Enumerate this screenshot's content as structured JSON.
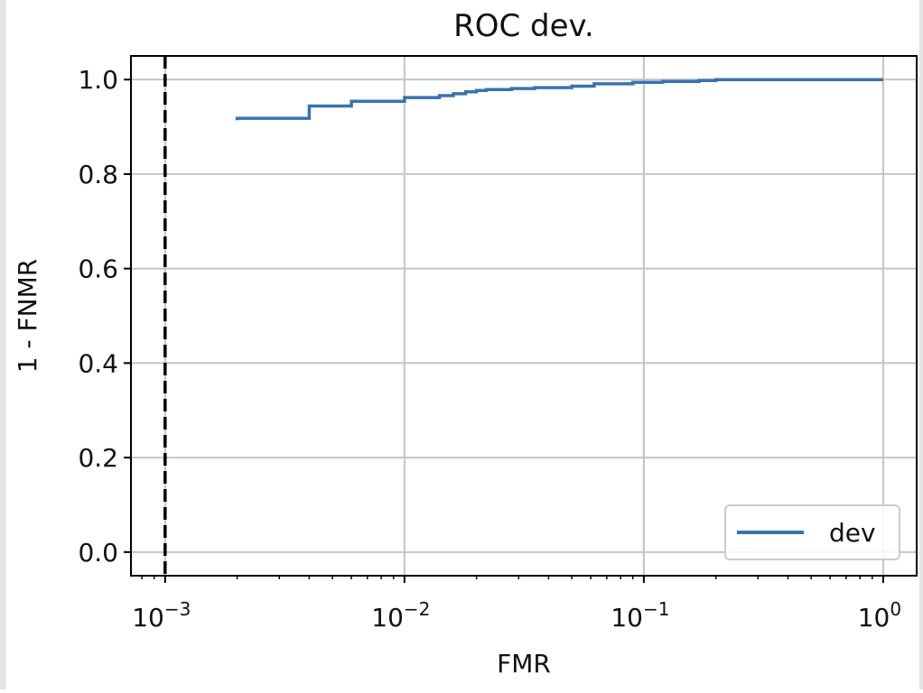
{
  "chart_data": {
    "type": "line",
    "title": "ROC dev.",
    "xlabel": "FMR",
    "ylabel": "1 - FNMR",
    "x_scale": "log",
    "xlim": [
      0.00072,
      1.38
    ],
    "ylim": [
      -0.05,
      1.05
    ],
    "grid": true,
    "x_ticks": [
      {
        "value": 0.001,
        "base": "10",
        "exp": "−3"
      },
      {
        "value": 0.01,
        "base": "10",
        "exp": "−2"
      },
      {
        "value": 0.1,
        "base": "10",
        "exp": "−1"
      },
      {
        "value": 1,
        "base": "10",
        "exp": "0"
      }
    ],
    "y_ticks": [
      {
        "value": 0.0,
        "label": "0.0"
      },
      {
        "value": 0.2,
        "label": "0.2"
      },
      {
        "value": 0.4,
        "label": "0.4"
      },
      {
        "value": 0.6,
        "label": "0.6"
      },
      {
        "value": 0.8,
        "label": "0.8"
      },
      {
        "value": 1.0,
        "label": "1.0"
      }
    ],
    "reference_line": {
      "x": 0.001,
      "style": "dashed",
      "color": "#000000"
    },
    "legend": {
      "position": "lower-right"
    },
    "series": [
      {
        "name": "dev",
        "color": "#3a73ad",
        "step": true,
        "x": [
          0.002,
          0.002,
          0.004,
          0.004,
          0.006,
          0.006,
          0.01,
          0.01,
          0.014,
          0.014,
          0.016,
          0.016,
          0.018,
          0.018,
          0.02,
          0.02,
          0.022,
          0.022,
          0.028,
          0.028,
          0.035,
          0.035,
          0.05,
          0.05,
          0.062,
          0.062,
          0.09,
          0.09,
          0.12,
          0.12,
          0.17,
          0.17,
          0.2,
          0.2,
          1.0
        ],
        "y": [
          0.914,
          0.918,
          0.918,
          0.944,
          0.944,
          0.954,
          0.954,
          0.962,
          0.962,
          0.966,
          0.966,
          0.97,
          0.97,
          0.974,
          0.974,
          0.977,
          0.977,
          0.979,
          0.979,
          0.981,
          0.981,
          0.983,
          0.983,
          0.986,
          0.986,
          0.991,
          0.991,
          0.994,
          0.994,
          0.996,
          0.996,
          0.998,
          0.998,
          1.0,
          1.0
        ]
      }
    ]
  }
}
